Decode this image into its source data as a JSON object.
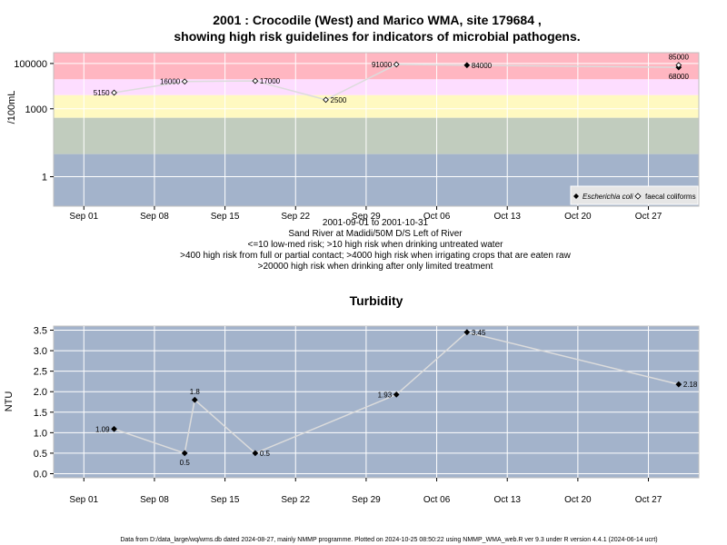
{
  "colors": {
    "band_very_high": "#FFB6C1",
    "band_high": "#FDDDFF",
    "band_irrigation": "#FFF9C1",
    "band_medium": "#C1CCBE",
    "band_low": "#A3B3CB",
    "panel_bg": "#A3B3CB",
    "grid": "#FFFFFF",
    "line": "#DCDCDC",
    "marker": "#000000"
  },
  "title_line1": "2001 : Crocodile (West) and Marico WMA, site 179684 ,",
  "title_line2": "showing high risk guidelines for indicators of microbial pathogens.",
  "subtitle_lines": [
    "2001-09-01 to 2001-10-31",
    "Sand River at Madidi/50M D/S Left of River",
    "<=10 low-med risk; >10 high risk when drinking untreated water",
    ">400 high risk from full or partial contact; >4000 high risk when irrigating crops that are eaten raw",
    ">20000 high risk when drinking after only limited treatment"
  ],
  "footer": "Data from D:/data_large/wq/wms.db dated 2024-08-27, mainly NMMP programme. Plotted on 2024-10-25 08:50:22 using NMMP_WMA_web.R ver 9.3 under R version 4.4.1 (2024-06-14 ucrt)",
  "chart_data": [
    {
      "type": "scatter",
      "title": "",
      "ylabel": "/100mL",
      "y_scale": "log10",
      "ylim": [
        0.05,
        300000
      ],
      "xlim": [
        "2001-08-29",
        "2001-11-01"
      ],
      "y_ticks": [
        1,
        1000,
        100000
      ],
      "y_tick_labels": [
        "1",
        "1000",
        "100000"
      ],
      "x_ticks": [
        "2001-09-01",
        "2001-09-08",
        "2001-09-15",
        "2001-09-22",
        "2001-09-29",
        "2001-10-06",
        "2001-10-13",
        "2001-10-20",
        "2001-10-27"
      ],
      "x_tick_labels": [
        "Sep 01",
        "Sep 08",
        "Sep 15",
        "Sep 22",
        "Sep 29",
        "Oct 06",
        "Oct 13",
        "Oct 20",
        "Oct 27"
      ],
      "grid": true,
      "legend_position": "bottom-right",
      "risk_bands": [
        {
          "from": 20000,
          "to": 300000,
          "color_key": "band_very_high"
        },
        {
          "from": 4000,
          "to": 20000,
          "color_key": "band_high"
        },
        {
          "from": 400,
          "to": 4000,
          "color_key": "band_irrigation"
        },
        {
          "from": 10,
          "to": 400,
          "color_key": "band_medium"
        },
        {
          "from": 0.05,
          "to": 10,
          "color_key": "band_low"
        }
      ],
      "series": [
        {
          "name": "Escherichia coli",
          "marker": "filled-diamond",
          "points": [
            {
              "x": "2001-10-09",
              "y": 84000,
              "label": "84000",
              "label_side": "right"
            },
            {
              "x": "2001-10-30",
              "y": 68000,
              "label": "68000",
              "label_side": "below"
            }
          ]
        },
        {
          "name": "faecal coliforms",
          "marker": "open-diamond",
          "points": [
            {
              "x": "2001-09-04",
              "y": 5150,
              "label": "5150",
              "label_side": "left"
            },
            {
              "x": "2001-09-11",
              "y": 16000,
              "label": "16000",
              "label_side": "left"
            },
            {
              "x": "2001-09-18",
              "y": 17000,
              "label": "17000",
              "label_side": "right"
            },
            {
              "x": "2001-09-25",
              "y": 2500,
              "label": "2500",
              "label_side": "right"
            },
            {
              "x": "2001-10-02",
              "y": 91000,
              "label": "91000",
              "label_side": "left"
            },
            {
              "x": "2001-10-30",
              "y": 85000,
              "label": "85000",
              "label_side": "above"
            }
          ]
        }
      ]
    },
    {
      "type": "line",
      "title": "Turbidity",
      "ylabel": "NTU",
      "ylim": [
        -0.1,
        3.6
      ],
      "xlim": [
        "2001-08-29",
        "2001-11-01"
      ],
      "y_ticks": [
        0,
        0.5,
        1,
        1.5,
        2,
        2.5,
        3,
        3.5
      ],
      "y_tick_labels": [
        "0.0",
        "0.5",
        "1.0",
        "1.5",
        "2.0",
        "2.5",
        "3.0",
        "3.5"
      ],
      "x_ticks": [
        "2001-09-01",
        "2001-09-08",
        "2001-09-15",
        "2001-09-22",
        "2001-09-29",
        "2001-10-06",
        "2001-10-13",
        "2001-10-20",
        "2001-10-27"
      ],
      "x_tick_labels": [
        "Sep 01",
        "Sep 08",
        "Sep 15",
        "Sep 22",
        "Sep 29",
        "Oct 06",
        "Oct 13",
        "Oct 20",
        "Oct 27"
      ],
      "grid": true,
      "series": [
        {
          "name": "",
          "marker": "filled-diamond",
          "points": [
            {
              "x": "2001-09-04",
              "y": 1.09,
              "label": "1.09",
              "label_side": "left"
            },
            {
              "x": "2001-09-11",
              "y": 0.5,
              "label": "0.5",
              "label_side": "below"
            },
            {
              "x": "2001-09-12",
              "y": 1.8,
              "label": "1.8",
              "label_side": "above"
            },
            {
              "x": "2001-09-18",
              "y": 0.5,
              "label": "0.5",
              "label_side": "right"
            },
            {
              "x": "2001-10-02",
              "y": 1.93,
              "label": "1.93",
              "label_side": "left"
            },
            {
              "x": "2001-10-09",
              "y": 3.45,
              "label": "3.45",
              "label_side": "right"
            },
            {
              "x": "2001-10-30",
              "y": 2.18,
              "label": "2.18",
              "label_side": "right"
            }
          ]
        }
      ]
    }
  ]
}
